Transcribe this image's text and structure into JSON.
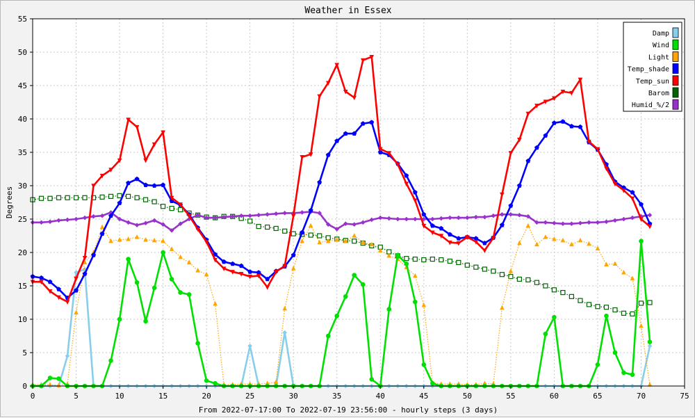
{
  "chart_data": {
    "type": "line",
    "title": "Weather in Essex",
    "xlabel": "From 2022-07-17:00 To 2022-07-19 23:56:00 - hourly steps (3 days)",
    "ylabel": "Degrees",
    "xlim": [
      0,
      75
    ],
    "ylim": [
      0,
      55
    ],
    "xticks": [
      "0",
      "5",
      "10",
      "15",
      "20",
      "25",
      "30",
      "35",
      "40",
      "45",
      "50",
      "55",
      "60",
      "65",
      "70",
      "75"
    ],
    "yticks": [
      "0",
      "5",
      "10",
      "15",
      "20",
      "25",
      "30",
      "35",
      "40",
      "45",
      "50",
      "55"
    ],
    "grid": true,
    "legend_position": "top-right",
    "x": [
      0,
      1,
      2,
      3,
      4,
      5,
      6,
      7,
      8,
      9,
      10,
      11,
      12,
      13,
      14,
      15,
      16,
      17,
      18,
      19,
      20,
      21,
      22,
      23,
      24,
      25,
      26,
      27,
      28,
      29,
      30,
      31,
      32,
      33,
      34,
      35,
      36,
      37,
      38,
      39,
      40,
      41,
      42,
      43,
      44,
      45,
      46,
      47,
      48,
      49,
      50,
      51,
      52,
      53,
      54,
      55,
      56,
      57,
      58,
      59,
      60,
      61,
      62,
      63,
      64,
      65,
      66,
      67,
      68,
      69,
      70,
      71
    ],
    "series": [
      {
        "name": "Damp",
        "color": "#87ceeb",
        "marker": "diamond",
        "style": "solid",
        "values": [
          0,
          0,
          0,
          0,
          4.5,
          17,
          17.5,
          0,
          0,
          0,
          0,
          0,
          0,
          0,
          0,
          0,
          0,
          0,
          0,
          0,
          0,
          0,
          0,
          0,
          0,
          6,
          0,
          0,
          0,
          8,
          0,
          0,
          0,
          0,
          0,
          0,
          0,
          0,
          0,
          0,
          0,
          0,
          0,
          0,
          0,
          0,
          0,
          0,
          0,
          0,
          0,
          0,
          0,
          0,
          0,
          0,
          0,
          0,
          0,
          0,
          0,
          0,
          0,
          0,
          0,
          0,
          0,
          0,
          0,
          0,
          0,
          6
        ]
      },
      {
        "name": "Wind",
        "color": "#00e000",
        "marker": "circle",
        "style": "solid",
        "values": [
          0,
          0,
          1.2,
          1.1,
          0,
          0,
          0,
          0,
          0,
          3.8,
          10,
          19,
          15.5,
          9.7,
          14.7,
          20,
          16,
          14,
          13.7,
          6.4,
          0.8,
          0.4,
          0,
          0,
          0,
          0,
          0,
          0,
          0,
          0,
          0,
          0,
          0,
          0,
          7.5,
          10.5,
          13.4,
          16.6,
          15.2,
          1,
          0,
          11.5,
          19.6,
          18.3,
          12.6,
          3.2,
          0.4,
          0,
          0,
          0,
          0,
          0,
          0,
          0,
          0,
          0,
          0,
          0,
          0,
          7.8,
          10.3,
          0,
          0,
          0,
          0,
          3.2,
          10.5,
          5,
          2,
          1.7,
          21.7,
          6.6
        ]
      },
      {
        "name": "Light",
        "color": "#ffa500",
        "marker": "triangle",
        "style": "dotted",
        "values": [
          0.2,
          0.2,
          0.2,
          0.1,
          0.3,
          11,
          18.5,
          20,
          23.8,
          21.7,
          21.9,
          22,
          22.3,
          21.9,
          21.8,
          21.7,
          20.5,
          19.3,
          18.5,
          17.3,
          16.7,
          12.3,
          0.2,
          0.2,
          0.3,
          0.3,
          0.3,
          0.4,
          0.6,
          11.6,
          17.6,
          21.7,
          24,
          21.5,
          21.7,
          21.9,
          21.7,
          22.5,
          21.5,
          21.2,
          20.3,
          19.5,
          19,
          17.8,
          16.5,
          12.1,
          0.5,
          0.3,
          0.3,
          0.3,
          0.2,
          0.2,
          0.4,
          0.3,
          11.7,
          17.2,
          21.4,
          24,
          21.2,
          22.3,
          22,
          21.8,
          21.2,
          21.8,
          21.3,
          20.6,
          18.2,
          18.3,
          17,
          16.1,
          9,
          0.2
        ]
      },
      {
        "name": "Temp_shade",
        "color": "#0000ff",
        "marker": "pentagon",
        "style": "solid",
        "values": [
          16.4,
          16.2,
          15.6,
          14.5,
          13.2,
          14.3,
          16.8,
          19.6,
          22.8,
          25.5,
          27.4,
          30.4,
          31,
          30.1,
          30,
          30.1,
          27.7,
          27.1,
          25.7,
          23.7,
          21.9,
          19.7,
          18.6,
          18.3,
          18,
          17.1,
          17,
          16,
          17.2,
          17.9,
          19.6,
          23,
          26.3,
          30.5,
          34.6,
          36.7,
          37.8,
          37.8,
          39.3,
          39.5,
          35,
          34.6,
          33.3,
          31.5,
          29,
          25.7,
          24,
          23.6,
          22.7,
          22.1,
          22.3,
          22.1,
          21.4,
          22.2,
          24.1,
          27,
          30,
          33.7,
          35.7,
          37.5,
          39.4,
          39.6,
          38.9,
          38.8,
          36.5,
          35.4,
          33.2,
          30.6,
          29.7,
          29,
          27.2,
          24.3
        ]
      },
      {
        "name": "Temp_sun",
        "color": "#ff0000",
        "marker": "triangle-down",
        "style": "solid",
        "values": [
          15.6,
          15.6,
          14.2,
          13.3,
          12.6,
          16.1,
          19.2,
          30,
          31.5,
          32.4,
          33.8,
          39.9,
          38.8,
          33.8,
          36.2,
          38,
          28.2,
          27.2,
          25.5,
          23.5,
          21.6,
          18.9,
          17.6,
          17.1,
          16.8,
          16.4,
          16.5,
          14.8,
          17.1,
          18,
          25.5,
          34.3,
          34.7,
          43.4,
          45.4,
          48.1,
          44.1,
          43.2,
          48.8,
          49.3,
          35.5,
          34.9,
          33.2,
          30.3,
          27.8,
          24,
          23,
          22.5,
          21.5,
          21.4,
          22.3,
          21.6,
          20.3,
          22.2,
          28.7,
          34.9,
          36.9,
          40.8,
          42,
          42.6,
          43.1,
          44.1,
          43.9,
          45.9,
          36.6,
          35.5,
          32.6,
          30.3,
          29.3,
          28.1,
          25,
          23.9
        ]
      },
      {
        "name": "Barom",
        "color": "#006400",
        "marker": "square",
        "style": "dotted",
        "values": [
          27.9,
          28.1,
          28.1,
          28.2,
          28.2,
          28.2,
          28.2,
          28.2,
          28.3,
          28.4,
          28.5,
          28.4,
          28.2,
          27.9,
          27.6,
          26.9,
          26.6,
          26.4,
          25.9,
          25.6,
          25.3,
          25.2,
          25.4,
          25.4,
          25.1,
          24.7,
          23.9,
          23.8,
          23.6,
          23.2,
          22.8,
          22.7,
          22.6,
          22.5,
          22.2,
          22,
          21.8,
          21.7,
          21.4,
          21,
          20.8,
          20.1,
          19.5,
          19.1,
          19,
          18.9,
          19,
          18.9,
          18.7,
          18.5,
          18.1,
          17.8,
          17.5,
          17.2,
          16.7,
          16.4,
          16,
          15.9,
          15.5,
          15,
          14.4,
          14,
          13.4,
          12.8,
          12.2,
          11.9,
          11.8,
          11.4,
          10.9,
          10.8,
          12.4,
          12.5
        ]
      },
      {
        "name": "Humid_%/2",
        "color": "#9932cc",
        "marker": "diamond",
        "style": "solid",
        "values": [
          24.5,
          24.5,
          24.6,
          24.8,
          24.9,
          25,
          25.2,
          25.4,
          25.5,
          26,
          25,
          24.5,
          24.1,
          24.4,
          24.8,
          24.2,
          23.3,
          24.3,
          25,
          25.6,
          25.2,
          25.2,
          25.3,
          25.4,
          25.5,
          25.5,
          25.6,
          25.7,
          25.8,
          25.9,
          25.9,
          26,
          26.1,
          25.9,
          24.2,
          23.5,
          24.3,
          24.2,
          24.5,
          24.9,
          25.2,
          25.1,
          25,
          25,
          25,
          25,
          25,
          25.1,
          25.2,
          25.2,
          25.2,
          25.3,
          25.3,
          25.5,
          25.7,
          25.7,
          25.6,
          25.4,
          24.5,
          24.5,
          24.4,
          24.3,
          24.3,
          24.4,
          24.5,
          24.5,
          24.6,
          24.8,
          25,
          25.2,
          25.4,
          25.6
        ]
      }
    ]
  }
}
